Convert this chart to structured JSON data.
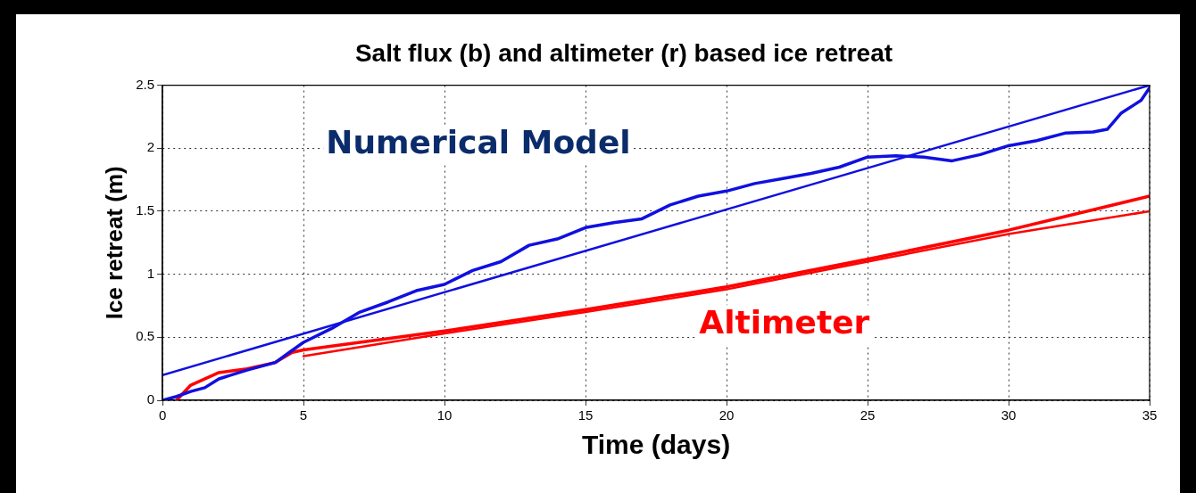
{
  "chart_data": {
    "type": "line",
    "title": "Salt flux (b) and altimeter (r) based ice retreat",
    "xlabel": "Time (days)",
    "ylabel": "Ice retreat (m)",
    "xlim": [
      0,
      35
    ],
    "xticks": [
      0,
      5,
      10,
      15,
      20,
      25,
      30,
      35
    ],
    "ylim": [
      0,
      2.5
    ],
    "yticks": [
      0,
      0.5,
      1,
      1.5,
      2,
      2.5
    ],
    "grid": true,
    "legend": false,
    "marker": "none",
    "line_style": "solid",
    "series": [
      {
        "color": "#1010e0",
        "x": [
          0,
          0.5,
          1,
          1.5,
          2,
          3,
          4,
          4.5,
          5,
          6,
          7,
          8,
          9,
          10,
          11,
          12,
          13,
          14,
          15,
          16,
          17,
          18,
          19,
          20,
          21,
          22,
          23,
          24,
          25,
          26,
          27,
          28,
          29,
          30,
          31,
          32,
          33,
          33.5,
          34,
          34.7,
          35
        ],
        "values": [
          0,
          0.03,
          0.07,
          0.1,
          0.17,
          0.24,
          0.3,
          0.38,
          0.46,
          0.57,
          0.7,
          0.78,
          0.87,
          0.92,
          1.03,
          1.1,
          1.23,
          1.28,
          1.37,
          1.41,
          1.44,
          1.55,
          1.62,
          1.66,
          1.72,
          1.76,
          1.8,
          1.85,
          1.93,
          1.94,
          1.93,
          1.9,
          1.95,
          2.02,
          2.06,
          2.12,
          2.13,
          2.15,
          2.28,
          2.38,
          2.48
        ]
      },
      {
        "color": "#1010e0",
        "x": [
          0,
          35
        ],
        "values": [
          0.2,
          2.5
        ]
      },
      {
        "color": "#ff0000",
        "x": [
          0.5,
          1,
          2,
          3,
          4,
          4.6,
          5,
          10,
          15,
          20,
          25,
          30,
          35
        ],
        "values": [
          0,
          0.12,
          0.22,
          0.25,
          0.3,
          0.38,
          0.4,
          0.55,
          0.72,
          0.9,
          1.12,
          1.35,
          1.62
        ]
      },
      {
        "color": "#ff0000",
        "x": [
          5,
          10,
          15,
          20,
          25,
          30,
          35
        ],
        "values": [
          0.35,
          0.53,
          0.7,
          0.88,
          1.1,
          1.32,
          1.5
        ]
      }
    ],
    "annotations": [
      "Numerical Model",
      "Altimeter"
    ]
  }
}
